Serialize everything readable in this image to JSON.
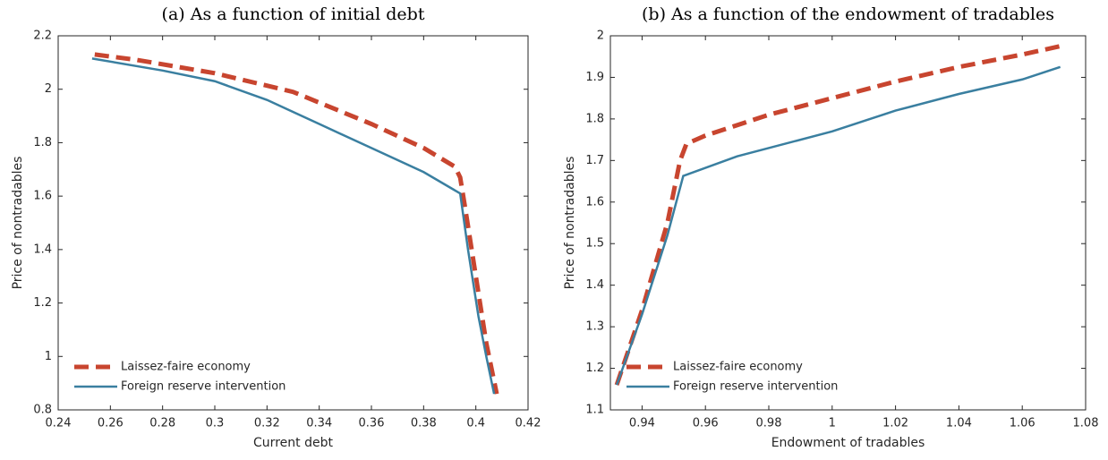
{
  "chart_data": [
    {
      "type": "line",
      "title": "(a) As a function of initial debt",
      "x_label": "Current debt",
      "y_label": "Price of nontradables",
      "xlim": [
        0.24,
        0.42
      ],
      "xticks": [
        0.24,
        0.26,
        0.28,
        0.3,
        0.32,
        0.34,
        0.36,
        0.38,
        0.4,
        0.42
      ],
      "ylim": [
        0.8,
        2.2
      ],
      "yticks": [
        0.8,
        1,
        1.2,
        1.4,
        1.6,
        1.8,
        2,
        2.2
      ],
      "legend": "lower-left",
      "series": [
        {
          "name": "Laissez-faire economy",
          "color": "#c8452f",
          "dashed": true,
          "x": [
            0.254,
            0.27,
            0.3,
            0.33,
            0.36,
            0.38,
            0.392,
            0.394,
            0.396,
            0.4,
            0.404,
            0.408
          ],
          "values": [
            2.13,
            2.11,
            2.06,
            1.99,
            1.87,
            1.78,
            1.71,
            1.67,
            1.55,
            1.3,
            1.05,
            0.86
          ]
        },
        {
          "name": "Foreign reserve intervention",
          "color": "#3a7fa0",
          "dashed": false,
          "x": [
            0.253,
            0.28,
            0.3,
            0.32,
            0.34,
            0.36,
            0.38,
            0.394,
            0.397,
            0.401,
            0.404,
            0.407
          ],
          "values": [
            2.115,
            2.07,
            2.03,
            1.96,
            1.87,
            1.78,
            1.69,
            1.61,
            1.4,
            1.15,
            1.0,
            0.86
          ]
        }
      ]
    },
    {
      "type": "line",
      "title": "(b) As a function of the endowment of tradables",
      "x_label": "Endowment of tradables",
      "y_label": "Price of nontradables",
      "xlim": [
        0.93,
        1.08
      ],
      "xticks": [
        0.94,
        0.96,
        0.98,
        1,
        1.02,
        1.04,
        1.06,
        1.08
      ],
      "ylim": [
        1.1,
        2
      ],
      "yticks": [
        1.1,
        1.2,
        1.3,
        1.4,
        1.5,
        1.6,
        1.7,
        1.8,
        1.9,
        2
      ],
      "legend": "lower-left",
      "series": [
        {
          "name": "Laissez-faire economy",
          "color": "#c8452f",
          "dashed": true,
          "x": [
            0.932,
            0.94,
            0.948,
            0.952,
            0.954,
            0.96,
            0.98,
            1.0,
            1.02,
            1.04,
            1.06,
            1.072
          ],
          "values": [
            1.16,
            1.34,
            1.55,
            1.7,
            1.74,
            1.76,
            1.81,
            1.85,
            1.89,
            1.925,
            1.955,
            1.975
          ]
        },
        {
          "name": "Foreign reserve intervention",
          "color": "#3a7fa0",
          "dashed": false,
          "x": [
            0.932,
            0.94,
            0.948,
            0.953,
            0.97,
            1.0,
            1.02,
            1.04,
            1.06,
            1.072
          ],
          "values": [
            1.16,
            1.33,
            1.52,
            1.663,
            1.71,
            1.77,
            1.82,
            1.86,
            1.895,
            1.925
          ]
        }
      ]
    }
  ]
}
